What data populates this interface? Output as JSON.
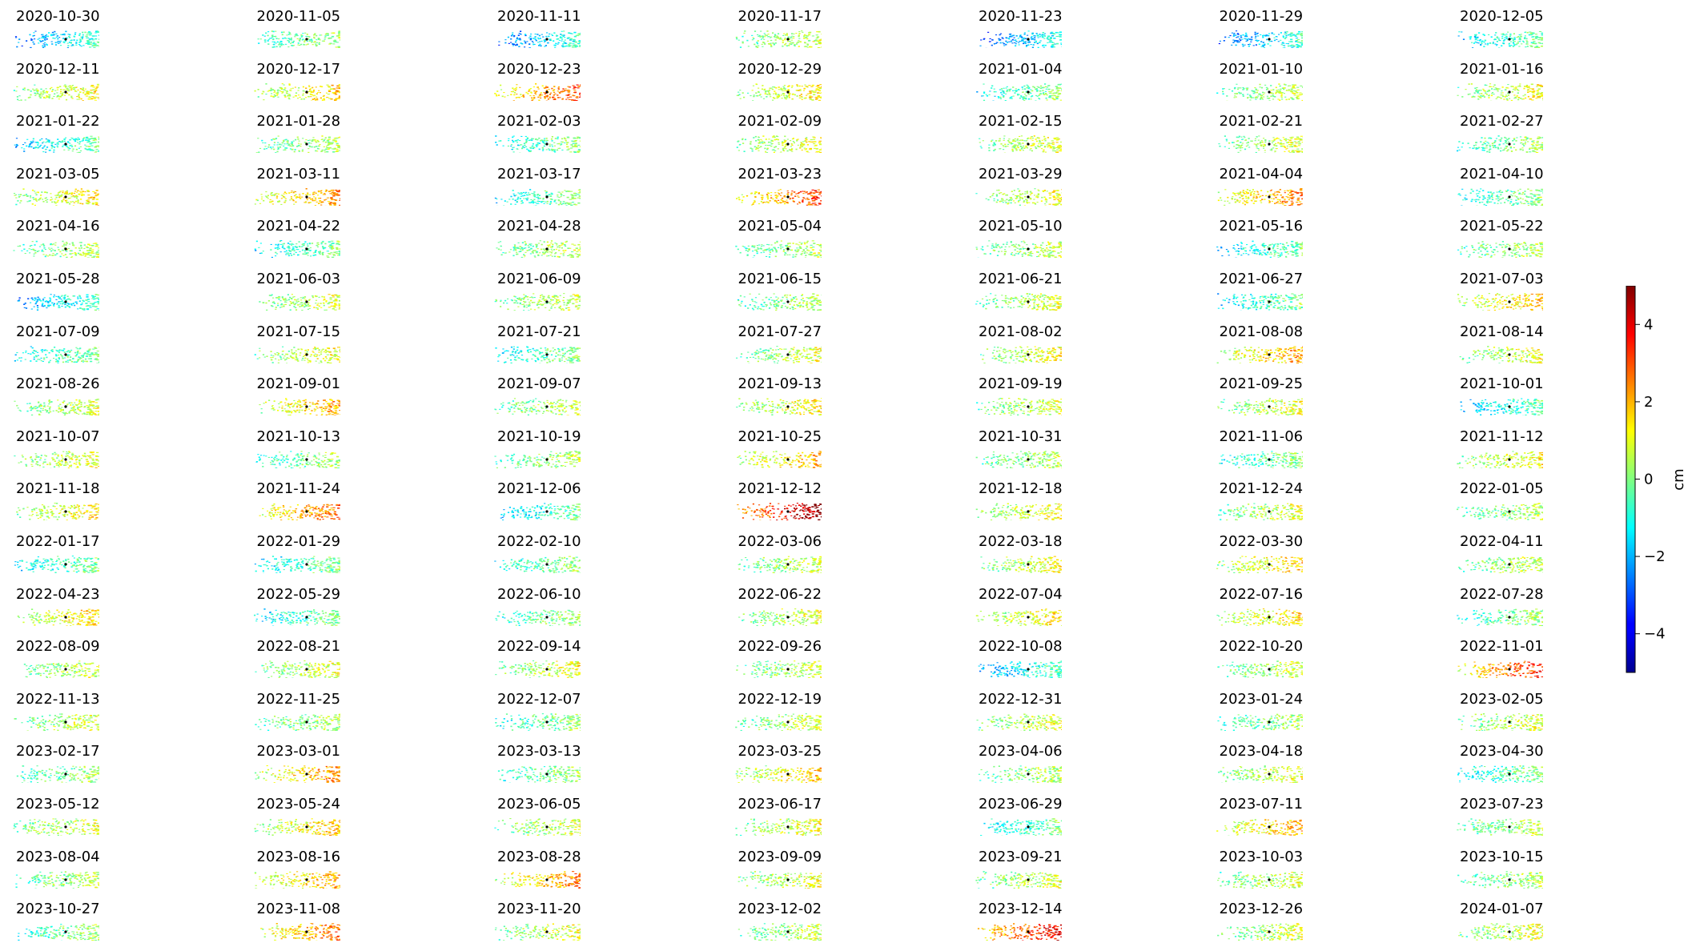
{
  "chart_data": {
    "type": "heatmap",
    "panels": [
      "2020-10-30",
      "2020-11-05",
      "2020-11-11",
      "2020-11-17",
      "2020-11-23",
      "2020-11-29",
      "2020-12-05",
      "2020-12-11",
      "2020-12-17",
      "2020-12-23",
      "2020-12-29",
      "2021-01-04",
      "2021-01-10",
      "2021-01-16",
      "2021-01-22",
      "2021-01-28",
      "2021-02-03",
      "2021-02-09",
      "2021-02-15",
      "2021-02-21",
      "2021-02-27",
      "2021-03-05",
      "2021-03-11",
      "2021-03-17",
      "2021-03-23",
      "2021-03-29",
      "2021-04-04",
      "2021-04-10",
      "2021-04-16",
      "2021-04-22",
      "2021-04-28",
      "2021-05-04",
      "2021-05-10",
      "2021-05-16",
      "2021-05-22",
      "2021-05-28",
      "2021-06-03",
      "2021-06-09",
      "2021-06-15",
      "2021-06-21",
      "2021-06-27",
      "2021-07-03",
      "2021-07-09",
      "2021-07-15",
      "2021-07-21",
      "2021-07-27",
      "2021-08-02",
      "2021-08-08",
      "2021-08-14",
      "2021-08-26",
      "2021-09-01",
      "2021-09-07",
      "2021-09-13",
      "2021-09-19",
      "2021-09-25",
      "2021-10-01",
      "2021-10-07",
      "2021-10-13",
      "2021-10-19",
      "2021-10-25",
      "2021-10-31",
      "2021-11-06",
      "2021-11-12",
      "2021-11-18",
      "2021-11-24",
      "2021-12-06",
      "2021-12-12",
      "2021-12-18",
      "2021-12-24",
      "2022-01-05",
      "2022-01-17",
      "2022-01-29",
      "2022-02-10",
      "2022-03-06",
      "2022-03-18",
      "2022-03-30",
      "2022-04-11",
      "2022-04-23",
      "2022-05-29",
      "2022-06-10",
      "2022-06-22",
      "2022-07-04",
      "2022-07-16",
      "2022-07-28",
      "2022-08-09",
      "2022-08-21",
      "2022-09-14",
      "2022-09-26",
      "2022-10-08",
      "2022-10-20",
      "2022-11-01",
      "2022-11-13",
      "2022-11-25",
      "2022-12-07",
      "2022-12-19",
      "2022-12-31",
      "2023-01-24",
      "2023-02-05",
      "2023-02-17",
      "2023-03-01",
      "2023-03-13",
      "2023-03-25",
      "2023-04-06",
      "2023-04-18",
      "2023-04-30",
      "2023-05-12",
      "2023-05-24",
      "2023-06-05",
      "2023-06-17",
      "2023-06-29",
      "2023-07-11",
      "2023-07-23",
      "2023-08-04",
      "2023-08-16",
      "2023-08-28",
      "2023-09-09",
      "2023-09-21",
      "2023-10-03",
      "2023-10-15",
      "2023-10-27",
      "2023-11-08",
      "2023-11-20",
      "2023-12-02",
      "2023-12-14",
      "2023-12-26",
      "2024-01-07"
    ],
    "panel_mean_cm": [
      -1.6,
      -0.2,
      -1.8,
      0.2,
      -2.0,
      -1.8,
      -0.9,
      0.6,
      0.9,
      2.0,
      0.7,
      -0.6,
      0.1,
      0.5,
      -1.0,
      0.0,
      -0.6,
      0.5,
      0.4,
      0.3,
      -0.2,
      0.8,
      1.5,
      -0.7,
      2.1,
      0.5,
      1.6,
      -0.6,
      0.0,
      -0.7,
      0.1,
      0.0,
      0.1,
      -0.9,
      0.0,
      -1.4,
      0.3,
      0.2,
      -0.1,
      0.3,
      -0.8,
      1.1,
      -0.7,
      0.5,
      -0.6,
      0.3,
      0.5,
      1.3,
      0.5,
      0.3,
      1.3,
      0.2,
      0.7,
      0.3,
      0.4,
      -1.2,
      0.5,
      -0.3,
      0.0,
      1.2,
      0.0,
      -0.5,
      0.6,
      0.8,
      1.8,
      -1.1,
      3.5,
      0.6,
      0.3,
      0.0,
      -0.7,
      -0.8,
      -0.4,
      0.2,
      0.5,
      1.0,
      0.2,
      0.9,
      -0.8,
      -0.3,
      0.4,
      0.8,
      0.9,
      -0.3,
      0.2,
      0.4,
      0.5,
      0.2,
      -1.3,
      0.2,
      2.4,
      0.3,
      0.0,
      -0.4,
      0.2,
      0.4,
      -0.3,
      0.3,
      -0.3,
      1.5,
      -0.4,
      1.0,
      0.0,
      0.5,
      -0.6,
      0.4,
      1.0,
      0.3,
      0.5,
      -0.8,
      1.3,
      0.1,
      0.1,
      1.3,
      1.6,
      0.5,
      0.3,
      0.3,
      0.0,
      -0.3,
      1.7,
      0.4,
      0.1,
      2.7,
      0.2,
      0.4
    ],
    "colorbar": {
      "ticks": [
        4,
        2,
        0,
        -2,
        -4
      ],
      "tick_labels": [
        "4",
        "2",
        "0",
        "−2",
        "−4"
      ],
      "range": [
        -5,
        5
      ],
      "label": "cm",
      "colormap": "jet"
    },
    "grid": "off",
    "columns": 7,
    "rows": 18
  }
}
